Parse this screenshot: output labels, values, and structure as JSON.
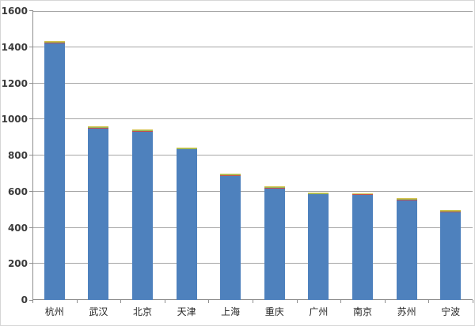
{
  "chart_data": {
    "type": "bar",
    "stacked": true,
    "title": "",
    "xlabel": "",
    "ylabel": "",
    "legend": "none",
    "grid": true,
    "ylim": [
      0,
      1600
    ],
    "ytick_step": 200,
    "yticklabels": [
      "0",
      "200",
      "400",
      "600",
      "800",
      "1000",
      "1200",
      "1400",
      "1600"
    ],
    "categories": [
      "杭州",
      "武汉",
      "北京",
      "天津",
      "上海",
      "重庆",
      "广州",
      "南京",
      "苏州",
      "宁波"
    ],
    "series": [
      {
        "name": "series-1-blue",
        "color": "#4e81bd",
        "values": [
          1420,
          948,
          932,
          833,
          687,
          616,
          584,
          581,
          552,
          485
        ]
      },
      {
        "name": "series-2-red",
        "color": "#c0504d",
        "values": [
          4,
          5,
          3,
          3,
          3,
          5,
          3,
          4,
          3,
          4
        ]
      },
      {
        "name": "series-3-green",
        "color": "#9bbb59",
        "values": [
          4,
          3,
          5,
          4,
          4,
          3,
          4,
          3,
          4,
          3
        ]
      },
      {
        "name": "series-4-yellow",
        "color": "#d2c14b",
        "values": [
          2,
          2,
          2,
          2,
          2,
          2,
          2,
          2,
          2,
          2
        ]
      }
    ],
    "totals": [
      1430,
      958,
      942,
      842,
      696,
      626,
      593,
      590,
      561,
      494
    ],
    "colors": {
      "gridline": "#a6a6a6",
      "axis": "#8f8f8f",
      "tick": "#8f8f8f",
      "text": "#3a3a3a",
      "background": "#ffffff",
      "border": "#d6d6d6"
    }
  }
}
